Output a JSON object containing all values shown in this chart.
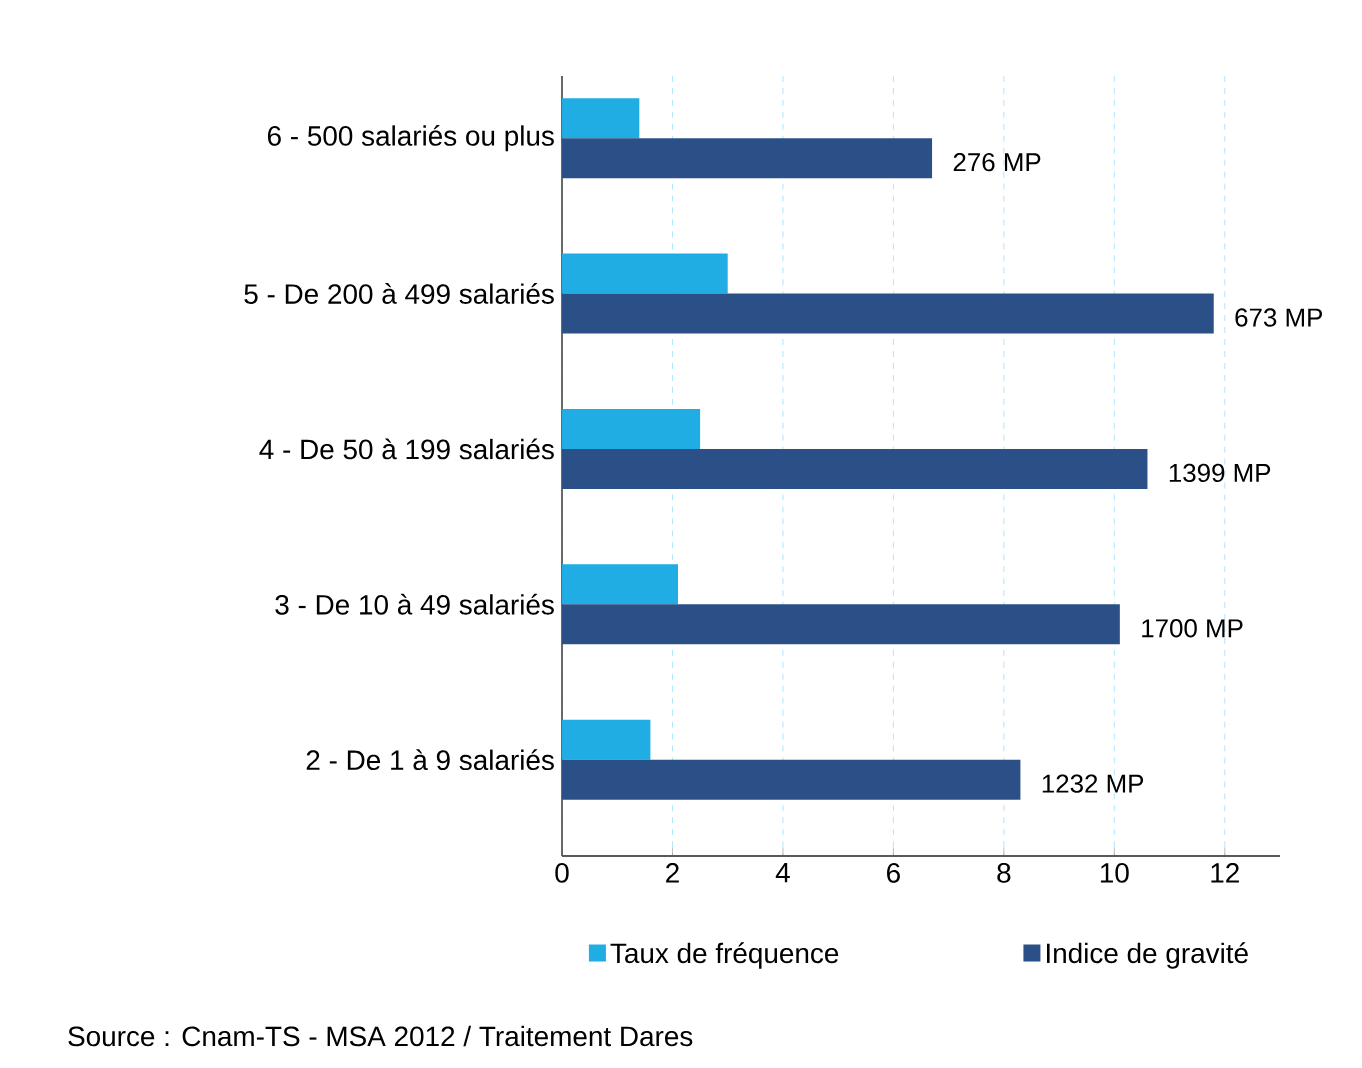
{
  "chart_data": {
    "type": "bar",
    "orientation": "horizontal",
    "categories": [
      "6 - 500 salariés ou plus",
      "5 - De 200 à 499 salariés",
      "4 - De 50 à 199 salariés",
      "3 - De 10 à 49 salariés",
      "2 - De 1 à 9 salariés"
    ],
    "series": [
      {
        "name": "Taux de fréquence",
        "color": "#1fade4",
        "values": [
          1.4,
          3.0,
          2.5,
          2.1,
          1.6
        ]
      },
      {
        "name": "Indice de gravité",
        "color": "#2a5087",
        "values": [
          6.7,
          11.8,
          10.6,
          10.1,
          8.3
        ]
      }
    ],
    "xlim": [
      0,
      13
    ],
    "xticks": [
      0,
      2,
      4,
      6,
      8,
      10,
      12
    ],
    "grid": "x",
    "legend": "bottom",
    "annotations": [
      {
        "text": "276 MP",
        "x": 6.7,
        "y": "6 - 500 salariés ou plus"
      },
      {
        "text": "673 MP",
        "x": 11.8,
        "y": "5 - De 200 à 499 salariés"
      },
      {
        "text": "1399 MP",
        "x": 10.6,
        "y": "4 - De 50 à 199 salariés"
      },
      {
        "text": "1700 MP",
        "x": 10.1,
        "y": "3 - De 10 à 49 salariés"
      },
      {
        "text": "1232 MP",
        "x": 8.3,
        "y": "2 - De 1 à 9 salariés"
      },
      "Source : Cnam-TS - MSA 2012 / Traitement Dares"
    ]
  }
}
